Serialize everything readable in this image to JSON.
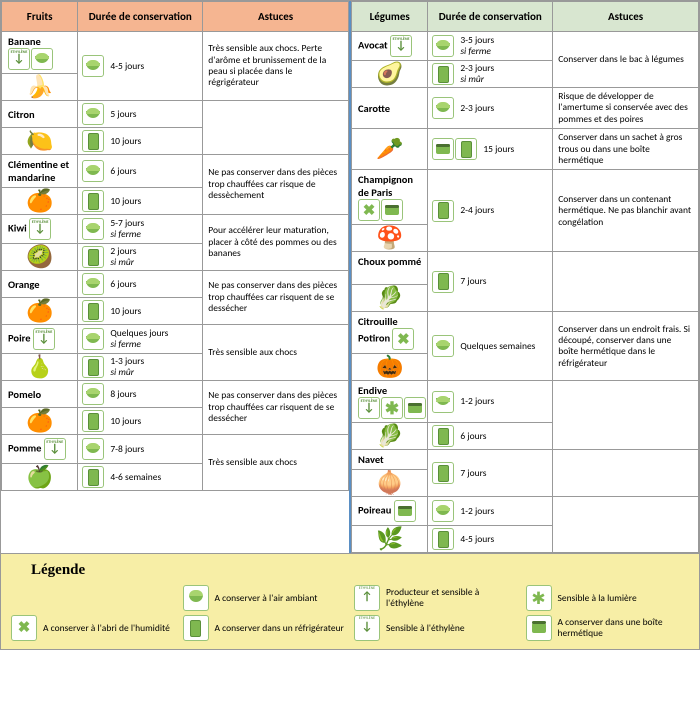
{
  "headers": {
    "fruits": "Fruits",
    "veg": "Légumes",
    "dur": "Durée de conservation",
    "tip": "Astuces"
  },
  "icons": {
    "bowl": "ico-bowl",
    "fridge": "ico-fridge",
    "eth": "ico-eth",
    "eth_prod": "ico-eth ico-eth-prod",
    "hum": "ico-hum",
    "light": "ico-light",
    "box": "ico-box"
  },
  "fruits": [
    {
      "name": "Banane",
      "emoji": "🍌",
      "name_icons": [
        "eth",
        "bowl"
      ],
      "durations": [
        {
          "icons": [
            "bowl"
          ],
          "text": "4-5 jours"
        }
      ],
      "tip": "Très sensible aux chocs. Perte d'arôme et brunissement de la peau si placée dans le régrigérateur"
    },
    {
      "name": "Citron",
      "emoji": "🍋",
      "name_icons": [],
      "durations": [
        {
          "icons": [
            "bowl"
          ],
          "text": "5 jours"
        },
        {
          "icons": [
            "fridge"
          ],
          "text": "10 jours"
        }
      ],
      "tip": ""
    },
    {
      "name": "Clémentine et mandarine",
      "emoji": "🍊",
      "name_icons": [],
      "durations": [
        {
          "icons": [
            "bowl"
          ],
          "text": "6 jours"
        },
        {
          "icons": [
            "fridge"
          ],
          "text": "10 jours"
        }
      ],
      "tip": "Ne pas conserver dans des pièces trop chauffées car risque de dessèchement"
    },
    {
      "name": "Kiwi",
      "emoji": "🥝",
      "name_icons": [
        "eth"
      ],
      "durations": [
        {
          "icons": [
            "bowl"
          ],
          "text": "5-7 jours",
          "note": "si ferme"
        },
        {
          "icons": [
            "fridge"
          ],
          "text": "2 jours",
          "note": "si mûr"
        }
      ],
      "tip": "Pour accélérer leur maturation, placer à côté des pommes ou des bananes"
    },
    {
      "name": "Orange",
      "emoji": "🍊",
      "name_icons": [],
      "durations": [
        {
          "icons": [
            "bowl"
          ],
          "text": "6 jours"
        },
        {
          "icons": [
            "fridge"
          ],
          "text": "10 jours"
        }
      ],
      "tip": "Ne pas conserver dans des pièces trop chauffées car risquent de se dessécher"
    },
    {
      "name": "Poire",
      "emoji": "🍐",
      "name_icons": [
        "eth"
      ],
      "durations": [
        {
          "icons": [
            "bowl"
          ],
          "text": "Quelques jours",
          "note": "si ferme"
        },
        {
          "icons": [
            "fridge"
          ],
          "text": "1-3 jours",
          "note": "si mûr"
        }
      ],
      "tip": "Très sensible aux chocs"
    },
    {
      "name": "Pomelo",
      "emoji": "🍊",
      "name_icons": [],
      "durations": [
        {
          "icons": [
            "bowl"
          ],
          "text": "8 jours"
        },
        {
          "icons": [
            "fridge"
          ],
          "text": "10 jours"
        }
      ],
      "tip": "Ne pas conserver dans des pièces trop chauffées car risquent de se dessécher"
    },
    {
      "name": "Pomme",
      "emoji": "🍏",
      "name_icons": [
        "eth"
      ],
      "durations": [
        {
          "icons": [
            "bowl"
          ],
          "text": "7-8 jours"
        },
        {
          "icons": [
            "fridge"
          ],
          "text": "4-6 semaines"
        }
      ],
      "tip": "Très sensible aux chocs"
    }
  ],
  "veg": [
    {
      "name": "Avocat",
      "emoji": "🥑",
      "name_icons": [
        "eth"
      ],
      "durations": [
        {
          "icons": [
            "bowl"
          ],
          "text": "3-5 jours",
          "note": "si ferme"
        },
        {
          "icons": [
            "fridge"
          ],
          "text": "2-3 jours",
          "note": "si mûr"
        }
      ],
      "tip": "Conserver dans le bac à légumes"
    },
    {
      "name": "Carotte",
      "emoji": "🥕",
      "name_icons": [],
      "durations": [
        {
          "icons": [
            "bowl"
          ],
          "text": "2-3 jours",
          "tip": "Risque de développer de l'amertume si conservée avec des pommes et des poires"
        },
        {
          "icons": [
            "box",
            "fridge"
          ],
          "text": "15 jours",
          "tip": "Conserver dans un sachet à gros trous ou dans une boîte hermétique"
        }
      ],
      "split_tip": true
    },
    {
      "name": "Champignon de Paris",
      "emoji": "🍄",
      "name_icons": [
        "hum",
        "box"
      ],
      "durations": [
        {
          "icons": [
            "fridge"
          ],
          "text": "2-4 jours"
        }
      ],
      "tip": "Conserver dans un contenant hermétique. Ne pas blanchir avant congélation"
    },
    {
      "name": "Choux pommé",
      "emoji": "🥬",
      "name_icons": [],
      "durations": [
        {
          "icons": [
            "fridge"
          ],
          "text": "7 jours"
        }
      ],
      "tip": ""
    },
    {
      "name": "Citrouille Potiron",
      "emoji": "🎃",
      "name_icons": [
        "hum"
      ],
      "durations": [
        {
          "icons": [
            "bowl"
          ],
          "text": "Quelques semaines"
        }
      ],
      "tip": "Conserver dans un endroit frais. Si découpé, conserver dans une boîte hermétique dans le réfrigérateur"
    },
    {
      "name": "Endive",
      "emoji": "🥬",
      "name_icons": [
        "eth",
        "light",
        "box"
      ],
      "durations": [
        {
          "icons": [
            "bowl"
          ],
          "text": "1-2 jours"
        },
        {
          "icons": [
            "fridge"
          ],
          "text": "6 jours"
        }
      ],
      "tip": ""
    },
    {
      "name": "Navet",
      "emoji": "🧅",
      "name_icons": [],
      "durations": [
        {
          "icons": [
            "fridge"
          ],
          "text": "7 jours"
        }
      ],
      "tip": ""
    },
    {
      "name": "Poireau",
      "emoji": "🌿",
      "name_icons": [
        "box"
      ],
      "durations": [
        {
          "icons": [
            "bowl"
          ],
          "text": "1-2 jours"
        },
        {
          "icons": [
            "fridge"
          ],
          "text": "4-5 jours"
        }
      ],
      "tip": ""
    }
  ],
  "legend": {
    "title": "Légende",
    "items": [
      {
        "icon": "bowl",
        "text": "A conserver à l'air ambiant"
      },
      {
        "icon": "eth_prod",
        "text": "Producteur et sensible à l'éthylène"
      },
      {
        "icon": "light",
        "text": "Sensible à la lumière"
      },
      {
        "icon": "hum",
        "text": "A conserver à l'abri de l'humidité"
      },
      {
        "icon": "fridge",
        "text": "A conserver dans un réfrigérateur"
      },
      {
        "icon": "eth",
        "text": "Sensible à l'éthylène"
      },
      {
        "icon": "box",
        "text": "A conserver dans une boîte hermétique"
      }
    ]
  },
  "colors": {
    "fruits_header": "#f5b591",
    "veg_header": "#d8e6d0",
    "legend_bg": "#f7eea6",
    "divider": "#5a8fc4",
    "icon_green": "#7fb850",
    "icon_border": "#9ac47a"
  }
}
